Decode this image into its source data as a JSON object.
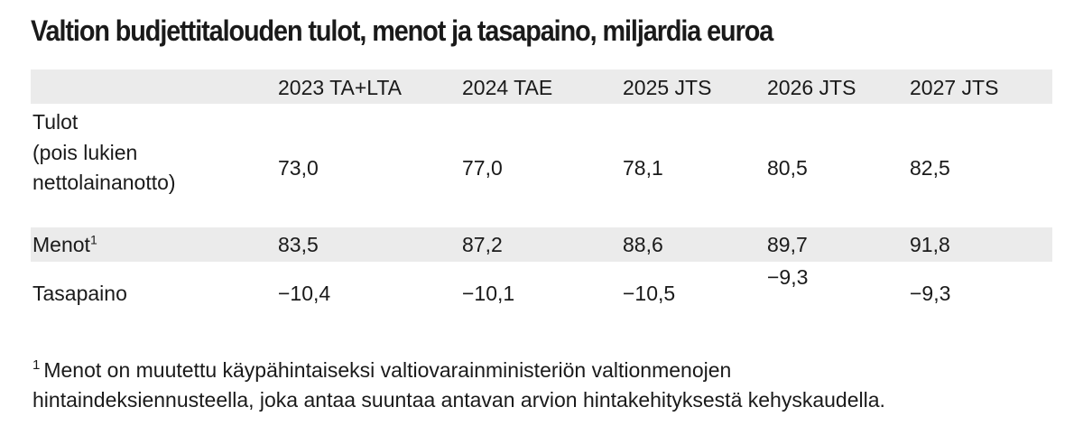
{
  "title": "Valtion budjettitalouden tulot, menot ja tasapaino, miljardia euroa",
  "table": {
    "columns": [
      "2023 TA+LTA",
      "2024 TAE",
      "2025 JTS",
      "2026 JTS",
      "2027 JTS"
    ],
    "rows": [
      {
        "label_lines": [
          "Tulot",
          "(pois lukien",
          "nettolainanotto)"
        ],
        "footnote_mark": "",
        "values": [
          "73,0",
          "77,0",
          "78,1",
          "80,5",
          "82,5"
        ]
      },
      {
        "label_lines": [
          "Menot"
        ],
        "footnote_mark": "1",
        "values": [
          "83,5",
          "87,2",
          "88,6",
          "89,7",
          "91,8"
        ]
      },
      {
        "label_lines": [
          "Tasapaino"
        ],
        "footnote_mark": "",
        "values": [
          "−10,4",
          "−10,1",
          "−10,5",
          "−9,3",
          "−9,3"
        ]
      }
    ]
  },
  "footnote": {
    "mark": "1",
    "line1": "Menot on muutettu käypähintaiseksi valtiovarainministeriön valtionmenojen",
    "line2": "hintaindeksiennusteella, joka antaa suuntaa antavan arvion hintakehityksestä kehyskaudella."
  }
}
